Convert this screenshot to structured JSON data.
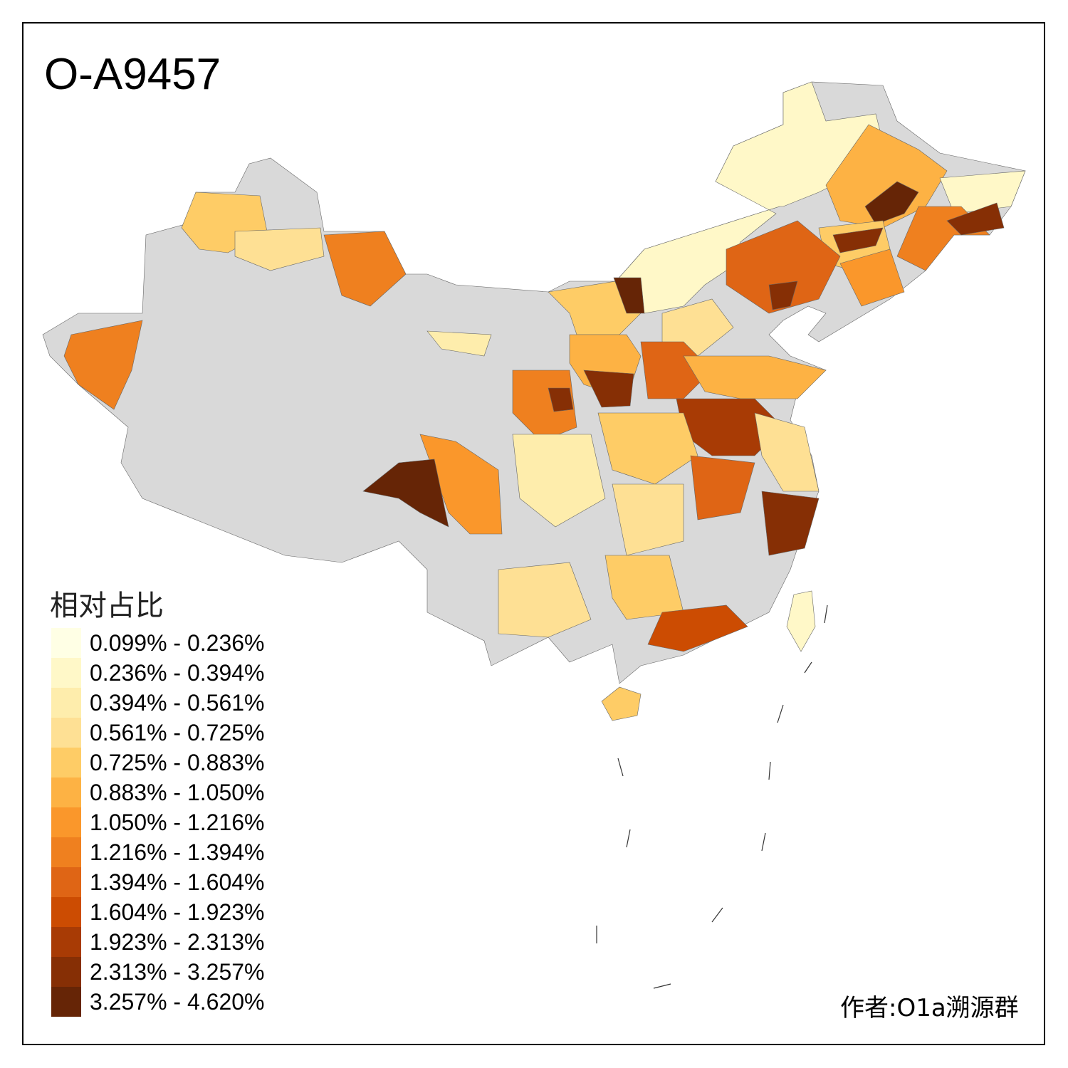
{
  "title": "O-A9457",
  "legend": {
    "title": "相对占比",
    "classes": [
      {
        "label": "0.099% - 0.236%",
        "color": "#FFFFE5"
      },
      {
        "label": "0.236% - 0.394%",
        "color": "#FFF8C8"
      },
      {
        "label": "0.394% - 0.561%",
        "color": "#FEEDAC"
      },
      {
        "label": "0.561% - 0.725%",
        "color": "#FEE094"
      },
      {
        "label": "0.725% - 0.883%",
        "color": "#FECC66"
      },
      {
        "label": "0.883% - 1.050%",
        "color": "#FDB244"
      },
      {
        "label": "1.050% - 1.216%",
        "color": "#FA972B"
      },
      {
        "label": "1.216% - 1.394%",
        "color": "#EF801F"
      },
      {
        "label": "1.394% - 1.604%",
        "color": "#DF6515"
      },
      {
        "label": "1.604% - 1.923%",
        "color": "#CC4C02"
      },
      {
        "label": "1.923% - 2.313%",
        "color": "#A83B05"
      },
      {
        "label": "2.313% - 3.257%",
        "color": "#862F05"
      },
      {
        "label": "3.257% - 4.620%",
        "color": "#662506"
      }
    ]
  },
  "no_data_color": "#D9D9D9",
  "regions": [
    {
      "class": 1
    },
    {
      "class": 4
    },
    {
      "class": 3
    },
    {
      "class": 7
    },
    {
      "class": 7
    },
    {
      "class": 5
    },
    {
      "class": 12
    },
    {
      "class": 1
    },
    {
      "class": 7
    },
    {
      "class": 11
    },
    {
      "class": 4
    },
    {
      "class": 8
    },
    {
      "class": 11
    },
    {
      "class": 6
    },
    {
      "class": 4
    },
    {
      "class": 12
    },
    {
      "class": 11
    },
    {
      "class": 3
    },
    {
      "class": 5
    },
    {
      "class": 8
    },
    {
      "class": 11
    },
    {
      "class": 2
    },
    {
      "class": 5
    },
    {
      "class": 10
    },
    {
      "class": 3
    },
    {
      "class": 7
    },
    {
      "class": 11
    },
    {
      "class": 4
    },
    {
      "class": 8
    },
    {
      "class": 2
    },
    {
      "class": 6
    },
    {
      "class": 3
    },
    {
      "class": 11
    },
    {
      "class": 4
    },
    {
      "class": 12
    }
  ],
  "author": "作者:O1a溯源群"
}
